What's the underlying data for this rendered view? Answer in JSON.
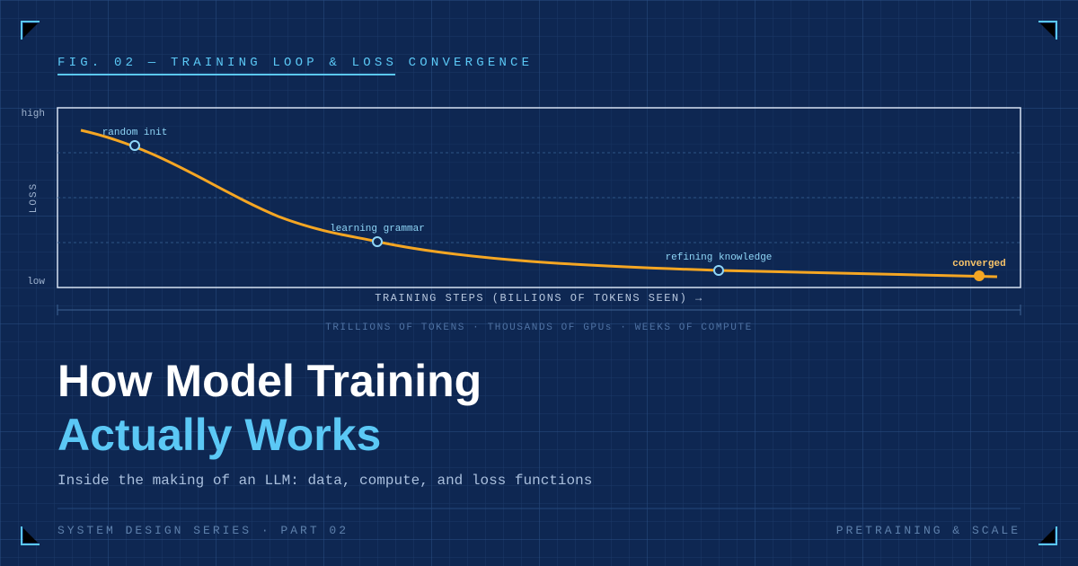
{
  "figure_label": "FIG. 02 — TRAINING LOOP & LOSS CONVERGENCE",
  "chart": {
    "y_axis_label": "LOSS",
    "y_high": "high",
    "y_low": "low",
    "x_axis_label": "TRAINING STEPS (BILLIONS OF TOKENS SEEN) →",
    "annotations": [
      "random init",
      "learning grammar",
      "refining knowledge",
      "converged"
    ],
    "footnote": "TRILLIONS OF TOKENS · THOUSANDS OF GPUs · WEEKS OF COMPUTE"
  },
  "title_line1": "How Model Training",
  "title_line2": "Actually Works",
  "subtitle": "Inside the making of an LLM: data, compute, and loss functions",
  "footer_left": "SYSTEM DESIGN SERIES · PART 02",
  "footer_right": "PRETRAINING & SCALE"
}
